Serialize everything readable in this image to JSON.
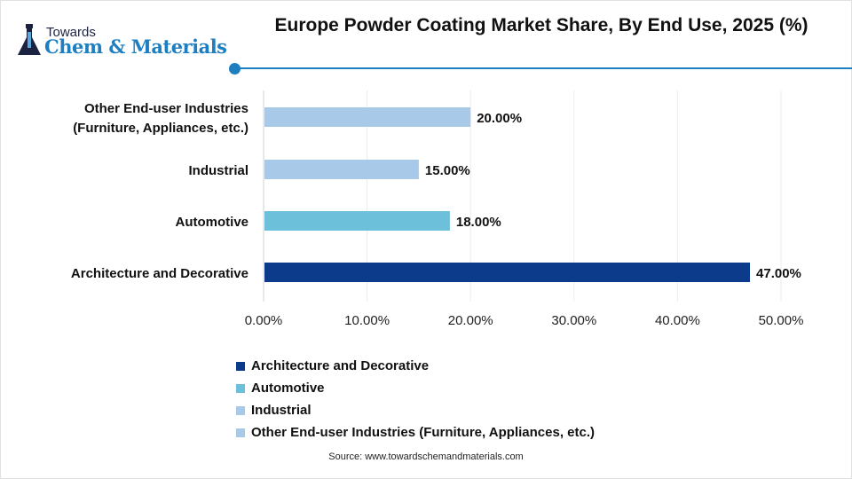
{
  "logo": {
    "line1": "Towards",
    "line2": "Chem & Materials"
  },
  "title": "Europe Powder Coating Market Share, By End Use, 2025 (%)",
  "source": "Source: www.towardschemandmaterials.com",
  "chart_data": {
    "type": "bar",
    "orientation": "horizontal",
    "title": "Europe Powder Coating Market Share, By End Use, 2025 (%)",
    "categories": [
      "Architecture and Decorative",
      "Automotive",
      "Industrial",
      "Other End-user Industries (Furniture, Appliances, etc.)"
    ],
    "category_labels": [
      [
        "Architecture and Decorative"
      ],
      [
        "Automotive"
      ],
      [
        "Industrial"
      ],
      [
        "Other End-user Industries",
        "(Furniture, Appliances, etc.)"
      ]
    ],
    "values": [
      47,
      18,
      15,
      20
    ],
    "data_labels": [
      "47.00%",
      "18.00%",
      "15.00%",
      "20.00%"
    ],
    "colors": [
      "#0d3b8c",
      "#6cc0d9",
      "#a9c9e8",
      "#a9c9e8"
    ],
    "xlim": [
      0,
      50
    ],
    "xticks": [
      "0.00%",
      "10.00%",
      "20.00%",
      "30.00%",
      "40.00%",
      "50.00%"
    ],
    "grid": true,
    "legend": {
      "placement": "bottom",
      "entries": [
        "Architecture and Decorative",
        "Automotive",
        "Industrial",
        "Other End-user Industries (Furniture, Appliances, etc.)"
      ]
    }
  }
}
